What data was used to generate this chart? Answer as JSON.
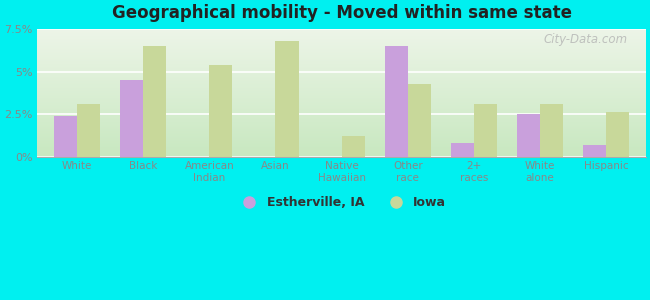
{
  "title": "Geographical mobility - Moved within same state",
  "categories": [
    "White",
    "Black",
    "American\nIndian",
    "Asian",
    "Native\nHawaiian",
    "Other\nrace",
    "2+\nraces",
    "White\nalone",
    "Hispanic"
  ],
  "estherville": [
    2.4,
    4.5,
    0.0,
    0.0,
    0.0,
    6.5,
    0.8,
    2.5,
    0.7
  ],
  "iowa": [
    3.1,
    6.5,
    5.4,
    6.8,
    1.2,
    4.3,
    3.1,
    3.1,
    2.6
  ],
  "color_estherville": "#c9a0dc",
  "color_iowa": "#c8d89a",
  "outer_background": "#00f0f0",
  "plot_bg_top": "#edf5e8",
  "plot_bg_bottom": "#c8e8c0",
  "grid_color": "#ffffff",
  "ylim": [
    0,
    7.5
  ],
  "yticks": [
    0,
    2.5,
    5.0,
    7.5
  ],
  "ytick_labels": [
    "0%",
    "2.5%",
    "5%",
    "7.5%"
  ],
  "bar_width": 0.35,
  "legend_estherville": "Estherville, IA",
  "legend_iowa": "Iowa",
  "watermark": "City-Data.com",
  "tick_label_color": "#888888",
  "title_color": "#222222"
}
